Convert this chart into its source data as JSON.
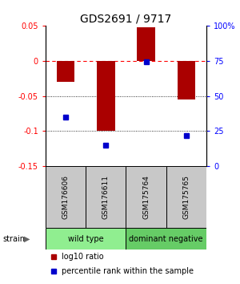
{
  "title": "GDS2691 / 9717",
  "samples": [
    "GSM176606",
    "GSM176611",
    "GSM175764",
    "GSM175765"
  ],
  "log10_ratio": [
    -0.03,
    -0.1,
    0.047,
    -0.055
  ],
  "percentile_rank": [
    0.35,
    0.15,
    0.74,
    0.22
  ],
  "ylim_left": [
    -0.15,
    0.05
  ],
  "yticks_left": [
    -0.15,
    -0.1,
    -0.05,
    0.0,
    0.05
  ],
  "ytick_labels_left": [
    "-0.15",
    "-0.1",
    "-0.05",
    "0",
    "0.05"
  ],
  "yticks_right": [
    0.0,
    0.25,
    0.5,
    0.75,
    1.0
  ],
  "ytick_labels_right": [
    "0",
    "25",
    "50",
    "75",
    "100%"
  ],
  "bar_color": "#AA0000",
  "dot_color": "#0000CC",
  "groups": [
    {
      "label": "wild type",
      "indices": [
        0,
        1
      ],
      "color": "#90EE90"
    },
    {
      "label": "dominant negative",
      "indices": [
        2,
        3
      ],
      "color": "#66CC66"
    }
  ],
  "legend_bar_label": "log10 ratio",
  "legend_dot_label": "percentile rank within the sample",
  "bar_width": 0.45,
  "title_fontsize": 10,
  "tick_fontsize": 7,
  "sample_label_fontsize": 6.5,
  "group_label_fontsize": 7,
  "legend_fontsize": 7,
  "sample_box_color": "#C8C8C8",
  "strain_label": "strain"
}
